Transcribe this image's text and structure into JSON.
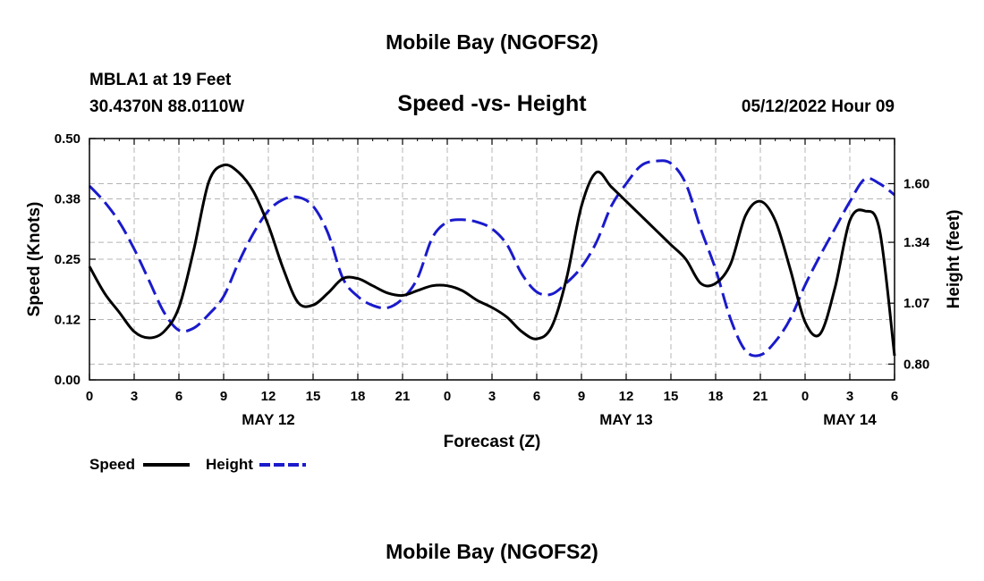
{
  "page": {
    "top_title": "Mobile Bay (NGOFS2)",
    "station_line1": "MBLA1 at 19 Feet",
    "station_line2": "30.4370N  88.0110W",
    "subtitle": "Speed -vs- Height",
    "date": "05/12/2022 Hour 09",
    "bottom_title": "Mobile Bay (NGOFS2)"
  },
  "chart_data": {
    "type": "line",
    "title": "Speed -vs- Height",
    "xlabel": "Forecast (Z)",
    "ylabel_left": "Speed (Knots)",
    "ylabel_right": "Height (feet)",
    "x_unit": "hours from 05/11/2022 00Z",
    "xlim": [
      0,
      54
    ],
    "ylim_left": [
      0,
      0.5
    ],
    "ylim_right": [
      0.73,
      1.8
    ],
    "x_tick_values": [
      0,
      3,
      6,
      9,
      12,
      15,
      18,
      21,
      24,
      27,
      30,
      33,
      36,
      39,
      42,
      45,
      48,
      51,
      54
    ],
    "x_tick_labels": [
      "0",
      "3",
      "6",
      "9",
      "12",
      "15",
      "18",
      "21",
      "0",
      "3",
      "6",
      "9",
      "12",
      "15",
      "18",
      "21",
      "0",
      "3",
      "6"
    ],
    "date_labels": [
      {
        "x": 12,
        "text": "MAY 12"
      },
      {
        "x": 36,
        "text": "MAY 13"
      },
      {
        "x": 51,
        "text": "MAY 14"
      }
    ],
    "y_left_ticks": [
      0.0,
      0.125,
      0.25,
      0.375,
      0.5
    ],
    "y_left_tick_labels": [
      "0.00",
      "0.12",
      "0.25",
      "0.38",
      "0.50"
    ],
    "y_right_ticks": [
      0.8,
      1.07,
      1.34,
      1.6
    ],
    "y_right_tick_labels": [
      "0.80",
      "1.07",
      "1.34",
      "1.60"
    ],
    "grid": true,
    "legend_position": "bottom-left",
    "series": [
      {
        "name": "Speed",
        "axis": "left",
        "color": "#000000",
        "style": "solid",
        "points": [
          [
            0,
            0.235
          ],
          [
            1,
            0.18
          ],
          [
            2,
            0.14
          ],
          [
            3,
            0.1
          ],
          [
            4,
            0.087
          ],
          [
            5,
            0.1
          ],
          [
            6,
            0.15
          ],
          [
            7,
            0.27
          ],
          [
            8,
            0.41
          ],
          [
            9,
            0.445
          ],
          [
            10,
            0.43
          ],
          [
            11,
            0.39
          ],
          [
            12,
            0.32
          ],
          [
            13,
            0.23
          ],
          [
            14,
            0.16
          ],
          [
            15,
            0.155
          ],
          [
            16,
            0.18
          ],
          [
            17,
            0.21
          ],
          [
            18,
            0.21
          ],
          [
            19,
            0.195
          ],
          [
            20,
            0.18
          ],
          [
            21,
            0.175
          ],
          [
            22,
            0.185
          ],
          [
            23,
            0.195
          ],
          [
            24,
            0.195
          ],
          [
            25,
            0.185
          ],
          [
            26,
            0.165
          ],
          [
            27,
            0.15
          ],
          [
            28,
            0.13
          ],
          [
            29,
            0.1
          ],
          [
            30,
            0.085
          ],
          [
            31,
            0.11
          ],
          [
            32,
            0.21
          ],
          [
            33,
            0.36
          ],
          [
            34,
            0.43
          ],
          [
            35,
            0.4
          ],
          [
            36,
            0.37
          ],
          [
            37,
            0.34
          ],
          [
            38,
            0.31
          ],
          [
            39,
            0.28
          ],
          [
            40,
            0.25
          ],
          [
            41,
            0.2
          ],
          [
            42,
            0.2
          ],
          [
            43,
            0.24
          ],
          [
            44,
            0.34
          ],
          [
            45,
            0.37
          ],
          [
            46,
            0.33
          ],
          [
            47,
            0.23
          ],
          [
            48,
            0.12
          ],
          [
            49,
            0.095
          ],
          [
            50,
            0.19
          ],
          [
            51,
            0.33
          ],
          [
            52,
            0.35
          ],
          [
            53,
            0.31
          ],
          [
            54,
            0.05
          ]
        ]
      },
      {
        "name": "Height",
        "axis": "right",
        "color": "#1a1acc",
        "style": "dashed",
        "points": [
          [
            0,
            1.59
          ],
          [
            1,
            1.52
          ],
          [
            2,
            1.43
          ],
          [
            3,
            1.31
          ],
          [
            4,
            1.17
          ],
          [
            5,
            1.03
          ],
          [
            6,
            0.95
          ],
          [
            7,
            0.96
          ],
          [
            8,
            1.02
          ],
          [
            9,
            1.1
          ],
          [
            10,
            1.25
          ],
          [
            11,
            1.38
          ],
          [
            12,
            1.48
          ],
          [
            13,
            1.53
          ],
          [
            14,
            1.54
          ],
          [
            15,
            1.5
          ],
          [
            16,
            1.38
          ],
          [
            17,
            1.18
          ],
          [
            18,
            1.1
          ],
          [
            19,
            1.06
          ],
          [
            20,
            1.05
          ],
          [
            21,
            1.09
          ],
          [
            22,
            1.18
          ],
          [
            23,
            1.36
          ],
          [
            24,
            1.43
          ],
          [
            25,
            1.44
          ],
          [
            26,
            1.43
          ],
          [
            27,
            1.4
          ],
          [
            28,
            1.33
          ],
          [
            29,
            1.2
          ],
          [
            30,
            1.12
          ],
          [
            31,
            1.11
          ],
          [
            32,
            1.16
          ],
          [
            33,
            1.23
          ],
          [
            34,
            1.34
          ],
          [
            35,
            1.5
          ],
          [
            36,
            1.6
          ],
          [
            37,
            1.68
          ],
          [
            38,
            1.7
          ],
          [
            39,
            1.69
          ],
          [
            40,
            1.6
          ],
          [
            41,
            1.4
          ],
          [
            42,
            1.22
          ],
          [
            43,
            1.0
          ],
          [
            44,
            0.86
          ],
          [
            45,
            0.84
          ],
          [
            46,
            0.9
          ],
          [
            47,
            1.0
          ],
          [
            48,
            1.15
          ],
          [
            49,
            1.28
          ],
          [
            50,
            1.4
          ],
          [
            51,
            1.52
          ],
          [
            52,
            1.62
          ],
          [
            53,
            1.6
          ],
          [
            54,
            1.55
          ]
        ]
      }
    ]
  },
  "legend": {
    "items": [
      {
        "label": "Speed",
        "color": "#000000",
        "style": "solid"
      },
      {
        "label": "Height",
        "color": "#1a1acc",
        "style": "dashed"
      }
    ]
  }
}
